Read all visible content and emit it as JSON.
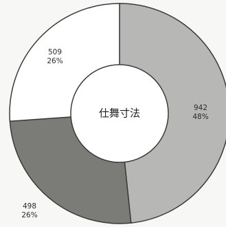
{
  "chart_data": {
    "type": "pie",
    "donut": true,
    "center_label": "仕舞寸法",
    "slices": [
      {
        "value": 942,
        "percent": "48%",
        "color": "#b7b7b5"
      },
      {
        "value": 498,
        "percent": "26%",
        "color": "#7b7b78"
      },
      {
        "value": 509,
        "percent": "26%",
        "color": "#ffffff"
      }
    ]
  }
}
